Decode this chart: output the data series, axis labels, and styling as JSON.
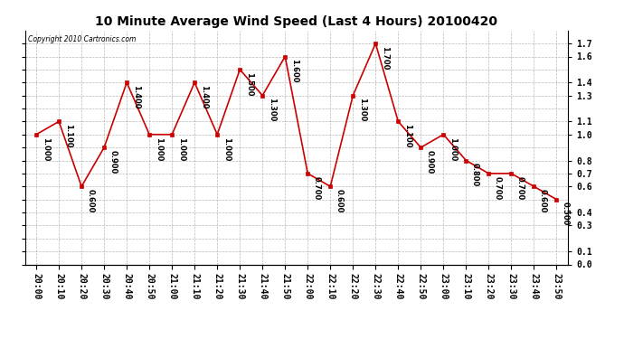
{
  "title": "10 Minute Average Wind Speed (Last 4 Hours) 20100420",
  "copyright": "Copyright 2010 Cartronics.com",
  "x_labels": [
    "20:00",
    "20:10",
    "20:20",
    "20:30",
    "20:40",
    "20:50",
    "21:00",
    "21:10",
    "21:20",
    "21:30",
    "21:40",
    "21:50",
    "22:00",
    "22:10",
    "22:20",
    "22:30",
    "22:40",
    "22:50",
    "23:00",
    "23:10",
    "23:20",
    "23:30",
    "23:40",
    "23:50"
  ],
  "y_values": [
    1.0,
    1.1,
    0.6,
    0.9,
    1.4,
    1.0,
    1.0,
    1.4,
    1.0,
    1.5,
    1.3,
    1.6,
    0.7,
    0.6,
    1.3,
    1.7,
    1.1,
    0.9,
    1.0,
    0.8,
    0.7,
    0.7,
    0.6,
    0.5
  ],
  "line_color": "#cc0000",
  "marker_color": "#cc0000",
  "bg_color": "#ffffff",
  "grid_color": "#888888",
  "ylim_min": 0.0,
  "ylim_max": 1.8,
  "yticks_right": [
    0.0,
    0.1,
    0.3,
    0.4,
    0.6,
    0.7,
    0.8,
    1.0,
    1.1,
    1.3,
    1.4,
    1.6,
    1.7
  ],
  "yticks_grid": [
    0.0,
    0.1,
    0.2,
    0.3,
    0.4,
    0.5,
    0.6,
    0.7,
    0.8,
    0.9,
    1.0,
    1.1,
    1.2,
    1.3,
    1.4,
    1.5,
    1.6,
    1.7
  ],
  "title_fontsize": 10,
  "label_fontsize": 7,
  "annotation_fontsize": 6
}
